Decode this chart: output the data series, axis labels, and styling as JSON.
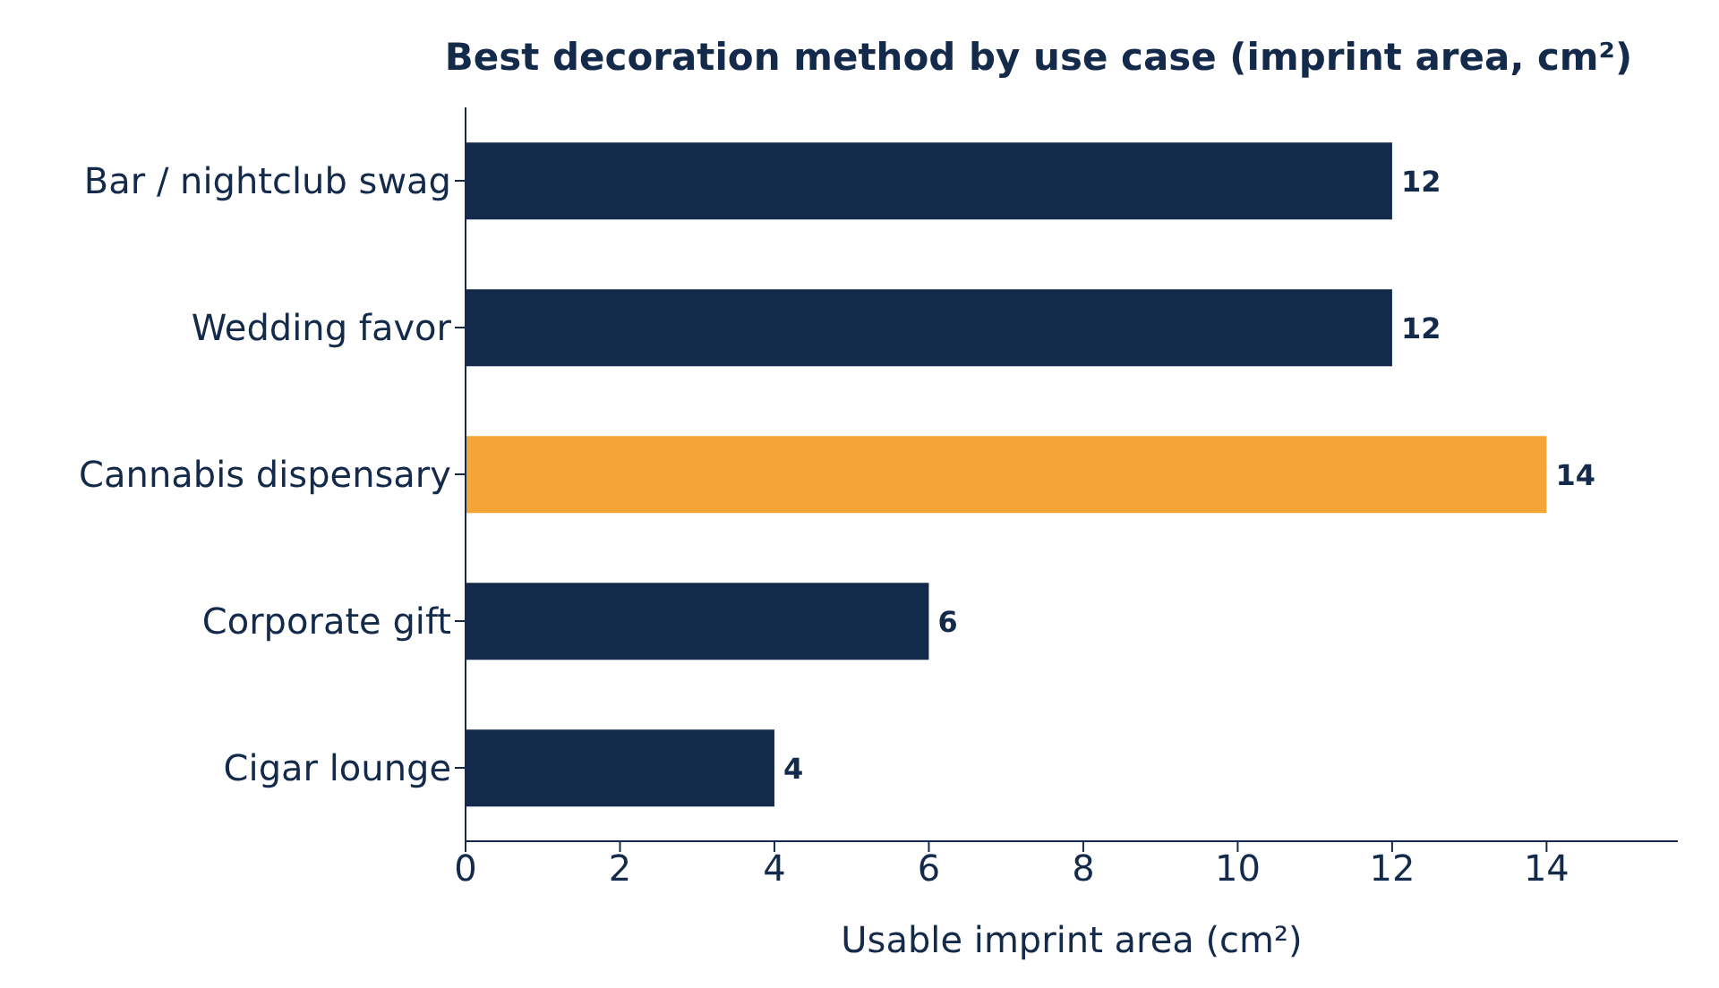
{
  "chart_data": {
    "type": "bar",
    "orientation": "horizontal",
    "title": "Best decoration method by use case (imprint area, cm²)",
    "xlabel": "Usable imprint area (cm²)",
    "categories": [
      "Bar / nightclub swag",
      "Wedding favor",
      "Cannabis dispensary",
      "Corporate gift",
      "Cigar lounge"
    ],
    "values": [
      12,
      12,
      14,
      6,
      4
    ],
    "colors": [
      "#142a4b",
      "#142a4b",
      "#f4a535",
      "#142a4b",
      "#142a4b"
    ],
    "xlim": [
      0,
      15.7
    ],
    "xticks": [
      0,
      2,
      4,
      6,
      8,
      10,
      12,
      14
    ],
    "grid": false,
    "data_labels": true,
    "legend": false
  }
}
